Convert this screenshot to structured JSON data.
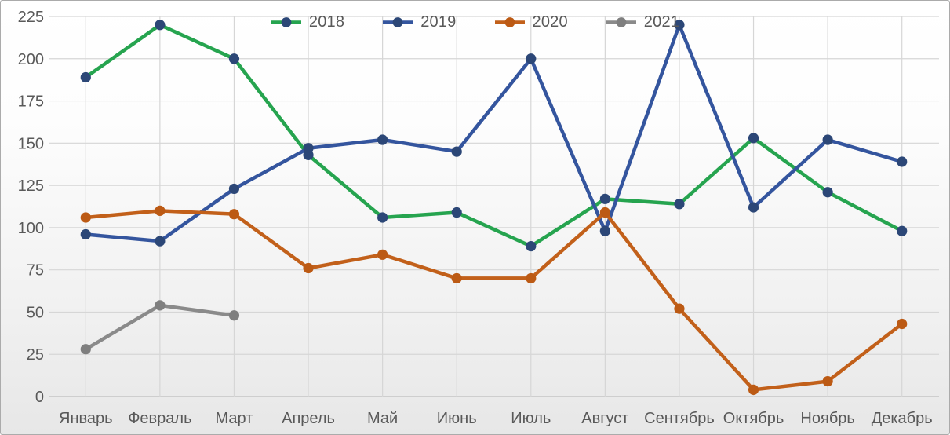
{
  "chart_data": {
    "type": "line",
    "title": "",
    "xlabel": "",
    "ylabel": "",
    "categories": [
      "Январь",
      "Февраль",
      "Март",
      "Апрель",
      "Май",
      "Июнь",
      "Июль",
      "Август",
      "Сентябрь",
      "Октябрь",
      "Ноябрь",
      "Декабрь"
    ],
    "series": [
      {
        "name": "2018",
        "line_color": "#26a44f",
        "marker_color": "#2c4777",
        "values": [
          189,
          220,
          200,
          143,
          106,
          109,
          89,
          117,
          114,
          153,
          121,
          98
        ]
      },
      {
        "name": "2019",
        "line_color": "#34559e",
        "marker_color": "#2c4777",
        "values": [
          96,
          92,
          123,
          147,
          152,
          145,
          200,
          98,
          220,
          112,
          152,
          139
        ]
      },
      {
        "name": "2020",
        "line_color": "#c2601a",
        "marker_color": "#bc5a14",
        "values": [
          106,
          110,
          108,
          76,
          84,
          70,
          70,
          109,
          52,
          4,
          9,
          43
        ]
      },
      {
        "name": "2021",
        "line_color": "#8a8a8a",
        "marker_color": "#7f7f7f",
        "values": [
          28,
          54,
          48,
          null,
          null,
          null,
          null,
          null,
          null,
          null,
          null,
          null
        ]
      }
    ],
    "ylim": [
      0,
      225
    ],
    "ytick_step": 25,
    "ytick_labels": [
      "0",
      "25",
      "50",
      "75",
      "100",
      "125",
      "150",
      "175",
      "200",
      "225"
    ],
    "grid": true,
    "legend_position": "top-center",
    "colors": {
      "axis_label": "#595959",
      "gridline": "#d6d6d6",
      "axis_line": "#bdbdbd",
      "frame_border": "#ababab"
    }
  }
}
